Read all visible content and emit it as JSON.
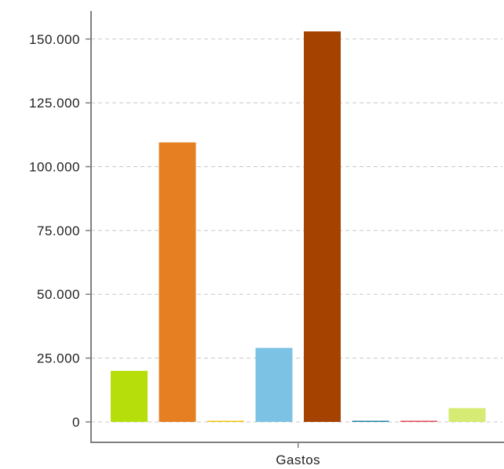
{
  "chart_data": {
    "type": "bar",
    "categories": [
      "Gastos"
    ],
    "series": [
      {
        "values": [
          20000
        ],
        "color": "#b5de0b"
      },
      {
        "values": [
          109500
        ],
        "color": "#e67e22"
      },
      {
        "values": [
          400
        ],
        "color": "#f1c40f"
      },
      {
        "values": [
          29000
        ],
        "color": "#7bc2e5"
      },
      {
        "values": [
          153000
        ],
        "color": "#a64200"
      },
      {
        "values": [
          300
        ],
        "color": "#1f86a3"
      },
      {
        "values": [
          300
        ],
        "color": "#e0475b"
      },
      {
        "values": [
          5400
        ],
        "color": "#d5eb74"
      }
    ],
    "yticks": [
      {
        "value": 0,
        "label": "0"
      },
      {
        "value": 25000,
        "label": "25.000"
      },
      {
        "value": 50000,
        "label": "50.000"
      },
      {
        "value": 75000,
        "label": "75.000"
      },
      {
        "value": 100000,
        "label": "100.000"
      },
      {
        "value": 125000,
        "label": "125.000"
      },
      {
        "value": 150000,
        "label": "150.000"
      }
    ],
    "ylim": [
      -8000,
      161000
    ],
    "grid": true,
    "legend": "none"
  }
}
